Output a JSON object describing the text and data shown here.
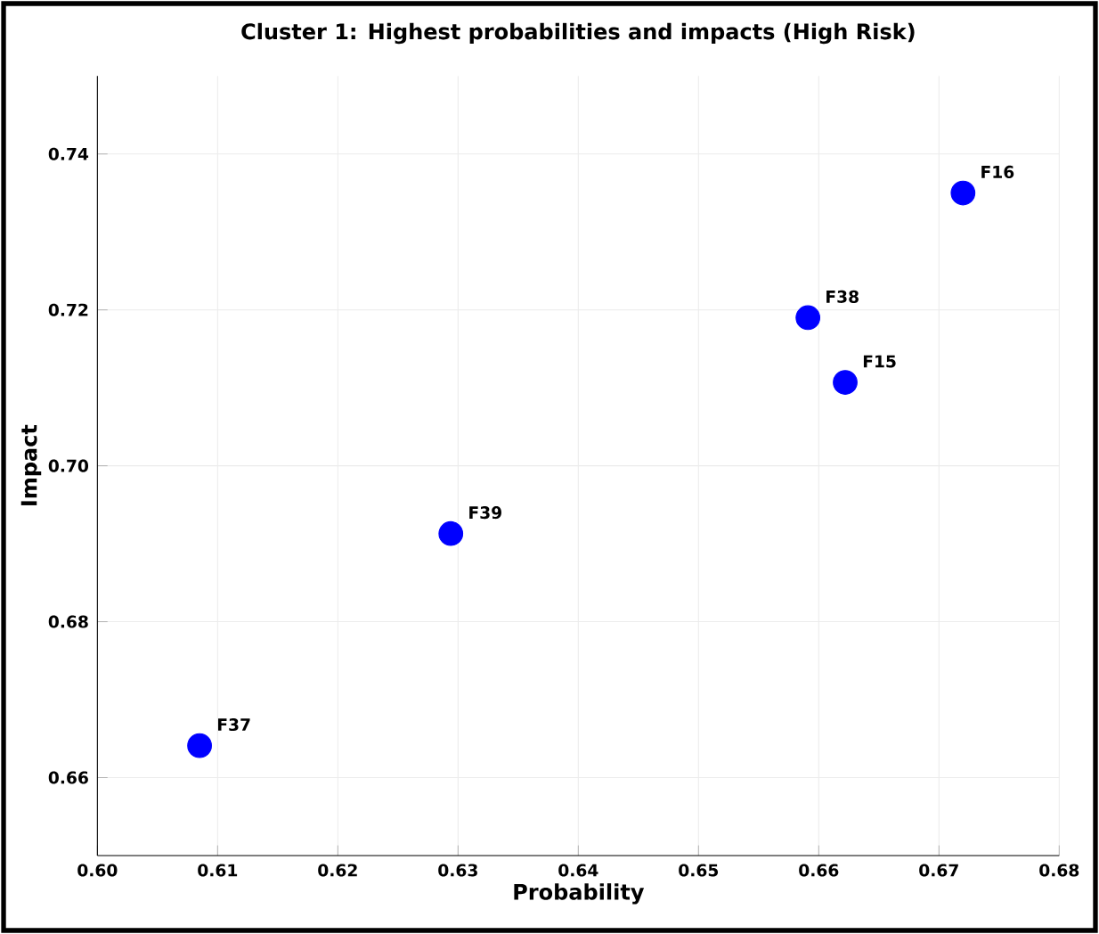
{
  "chart_data": {
    "type": "scatter",
    "title": "Cluster 1: Highest probabilities and impacts (High Risk)",
    "xlabel": "Probability",
    "ylabel": "Impact",
    "x": [
      0.6085,
      0.6294,
      0.6591,
      0.6622,
      0.672
    ],
    "values": [
      0.6641,
      0.6913,
      0.719,
      0.7107,
      0.735
    ],
    "color": "#0000ff",
    "marker": "circle",
    "grid": true,
    "xlim": [
      0.6,
      0.68
    ],
    "xticks": [
      {
        "value": 0.6,
        "label": "0.60"
      },
      0.61,
      0.62,
      0.63,
      0.64,
      0.65,
      0.66,
      0.67,
      0.68
    ],
    "ylim": [
      0.65,
      0.75
    ],
    "yticks": [
      0.66,
      0.68,
      {
        "value": 0.7,
        "label": "0.70"
      },
      0.72,
      0.74
    ],
    "annotations": [
      {
        "text": "F37",
        "x": 0.6085,
        "y": 0.6641
      },
      {
        "text": "F39",
        "x": 0.6294,
        "y": 0.6913
      },
      {
        "text": "F38",
        "x": 0.6591,
        "y": 0.719
      },
      {
        "text": "F15",
        "x": 0.6622,
        "y": 0.7107
      },
      {
        "text": "F16",
        "x": 0.672,
        "y": 0.735
      }
    ]
  }
}
